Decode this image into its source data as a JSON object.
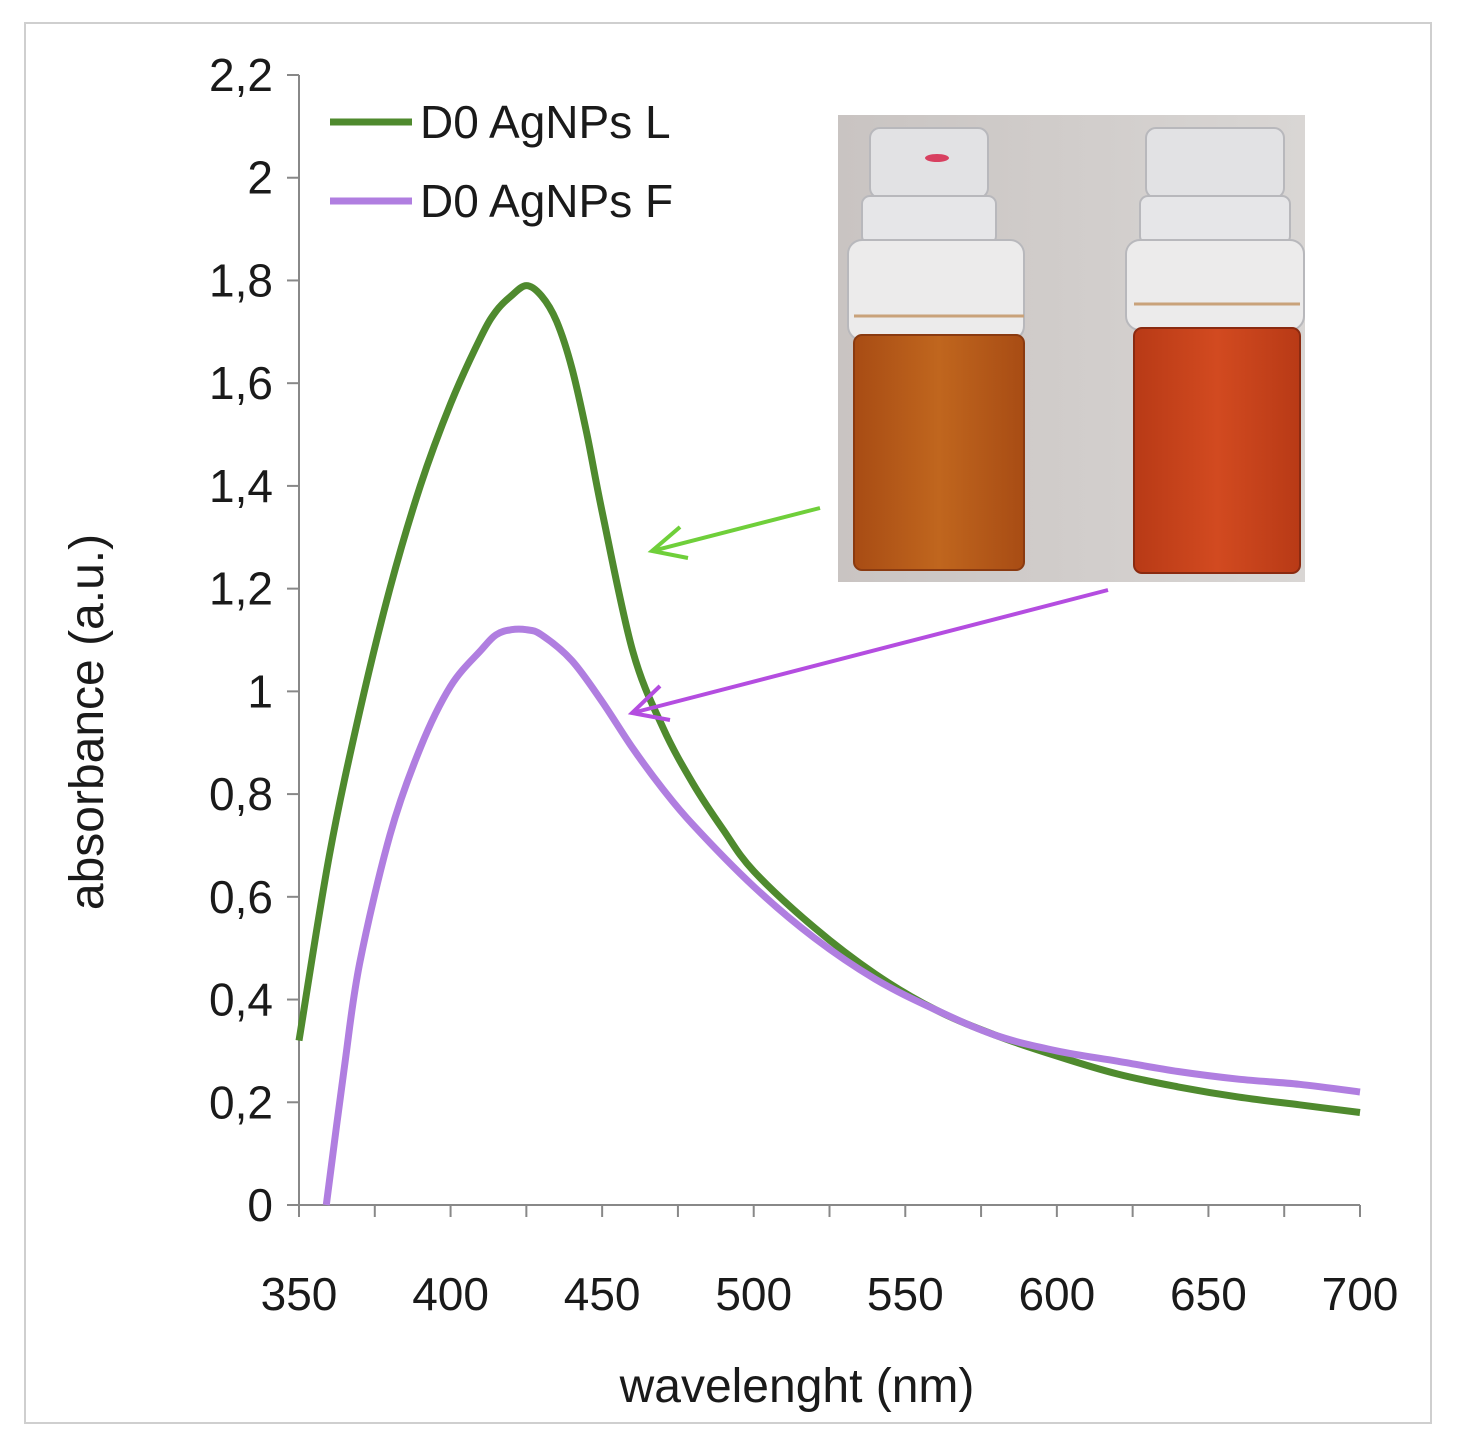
{
  "chart_data": {
    "type": "line",
    "title": "",
    "xlabel": "wavelenght (nm)",
    "ylabel": "absorbance (a.u.)",
    "xlim": [
      350,
      700
    ],
    "ylim": [
      0,
      2.2
    ],
    "x_ticks": [
      350,
      400,
      450,
      500,
      550,
      600,
      650,
      700
    ],
    "x_tick_labels": [
      "350",
      "400",
      "450",
      "500",
      "550",
      "600",
      "650",
      "700"
    ],
    "y_ticks": [
      0,
      0.2,
      0.4,
      0.6,
      0.8,
      1,
      1.2,
      1.4,
      1.6,
      1.8,
      2,
      2.2
    ],
    "y_tick_labels": [
      "0",
      "0,2",
      "0,4",
      "0,6",
      "0,8",
      "1",
      "1,2",
      "1,4",
      "1,6",
      "1,8",
      "2",
      "2,2"
    ],
    "grid": false,
    "legend_position": "top-left",
    "series": [
      {
        "name": "D0 AgNPs L",
        "color": "#4f8a2e",
        "x": [
          350,
          360,
          370,
          380,
          390,
          400,
          410,
          415,
          420,
          425,
          430,
          435,
          440,
          445,
          450,
          460,
          470,
          480,
          490,
          500,
          520,
          540,
          560,
          580,
          600,
          620,
          640,
          660,
          680,
          700
        ],
        "y": [
          0.32,
          0.68,
          0.96,
          1.2,
          1.4,
          1.56,
          1.69,
          1.74,
          1.77,
          1.79,
          1.77,
          1.72,
          1.63,
          1.5,
          1.35,
          1.08,
          0.93,
          0.82,
          0.73,
          0.65,
          0.54,
          0.45,
          0.38,
          0.33,
          0.29,
          0.255,
          0.23,
          0.21,
          0.195,
          0.18
        ]
      },
      {
        "name": "D0 AgNPs F",
        "color": "#b07ee0",
        "x": [
          359,
          365,
          370,
          380,
          390,
          400,
          410,
          415,
          420,
          425,
          430,
          440,
          450,
          460,
          470,
          480,
          500,
          520,
          540,
          560,
          580,
          600,
          620,
          640,
          660,
          680,
          700
        ],
        "y": [
          0.0,
          0.27,
          0.47,
          0.72,
          0.89,
          1.01,
          1.08,
          1.11,
          1.12,
          1.12,
          1.11,
          1.06,
          0.98,
          0.89,
          0.81,
          0.74,
          0.62,
          0.52,
          0.44,
          0.38,
          0.33,
          0.3,
          0.28,
          0.26,
          0.245,
          0.235,
          0.22
        ]
      }
    ],
    "annotations": [
      {
        "type": "arrow",
        "color": "#6fcf3a",
        "points_to": "D0 AgNPs L"
      },
      {
        "type": "arrow",
        "color": "#b44de0",
        "points_to": "D0 AgNPs F"
      },
      {
        "type": "inset-photo",
        "description_colors": [
          "#b5541a",
          "#c9401c"
        ]
      }
    ]
  }
}
